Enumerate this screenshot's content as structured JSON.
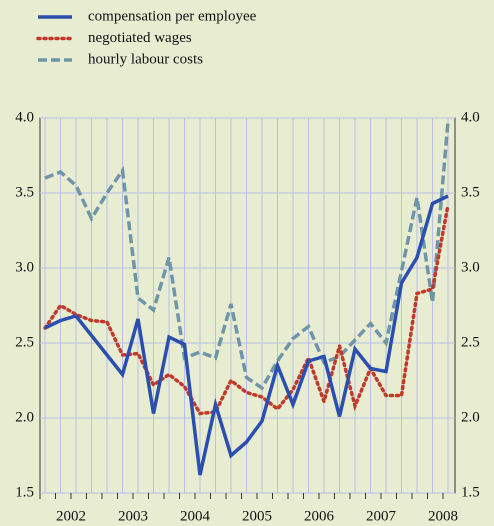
{
  "chart_data": {
    "type": "line",
    "categories": [
      null,
      null,
      null,
      null,
      null,
      null,
      null,
      null,
      null,
      null,
      null,
      null,
      null,
      null,
      null,
      null,
      null,
      null,
      null,
      null,
      null,
      null,
      null,
      null,
      null,
      null,
      null
    ],
    "year_labels": [
      "2002",
      "2003",
      "2004",
      "2005",
      "2006",
      "2007",
      "2008"
    ],
    "series": [
      {
        "name": "compensation per employee",
        "color": "#2b4fae",
        "style": "solid",
        "values": [
          2.6,
          2.65,
          2.68,
          2.55,
          2.42,
          2.29,
          2.66,
          2.03,
          2.54,
          2.49,
          1.62,
          2.09,
          1.75,
          1.84,
          1.98,
          2.35,
          2.09,
          2.38,
          2.41,
          2.01,
          2.46,
          2.33,
          2.31,
          2.9,
          3.07,
          3.43,
          3.48
        ]
      },
      {
        "name": "negotiated wages",
        "color": "#c0392b",
        "style": "dotted",
        "values": [
          2.6,
          2.75,
          2.69,
          2.65,
          2.64,
          2.42,
          2.43,
          2.22,
          2.29,
          2.21,
          2.03,
          2.04,
          2.25,
          2.17,
          2.14,
          2.06,
          2.19,
          2.4,
          2.11,
          2.48,
          2.08,
          2.33,
          2.15,
          2.15,
          2.83,
          2.86,
          3.42
        ]
      },
      {
        "name": "hourly labour costs",
        "color": "#6f96a8",
        "style": "dashed",
        "values": [
          3.6,
          3.64,
          3.55,
          3.33,
          3.5,
          3.65,
          2.8,
          2.72,
          3.07,
          2.4,
          2.44,
          2.4,
          2.76,
          2.27,
          2.2,
          2.38,
          2.53,
          2.61,
          2.37,
          2.41,
          2.52,
          2.63,
          2.5,
          2.98,
          3.47,
          2.77,
          3.98
        ]
      }
    ],
    "ylim": [
      1.5,
      4.0
    ],
    "yticks": [
      {
        "value": 1.5,
        "label": "1.5"
      },
      {
        "value": 2.0,
        "label": "2.0"
      },
      {
        "value": 2.5,
        "label": "2.5"
      },
      {
        "value": 3.0,
        "label": "3.0"
      },
      {
        "value": 3.5,
        "label": "3.5"
      },
      {
        "value": 4.0,
        "label": "4.0"
      }
    ],
    "grid": true
  }
}
